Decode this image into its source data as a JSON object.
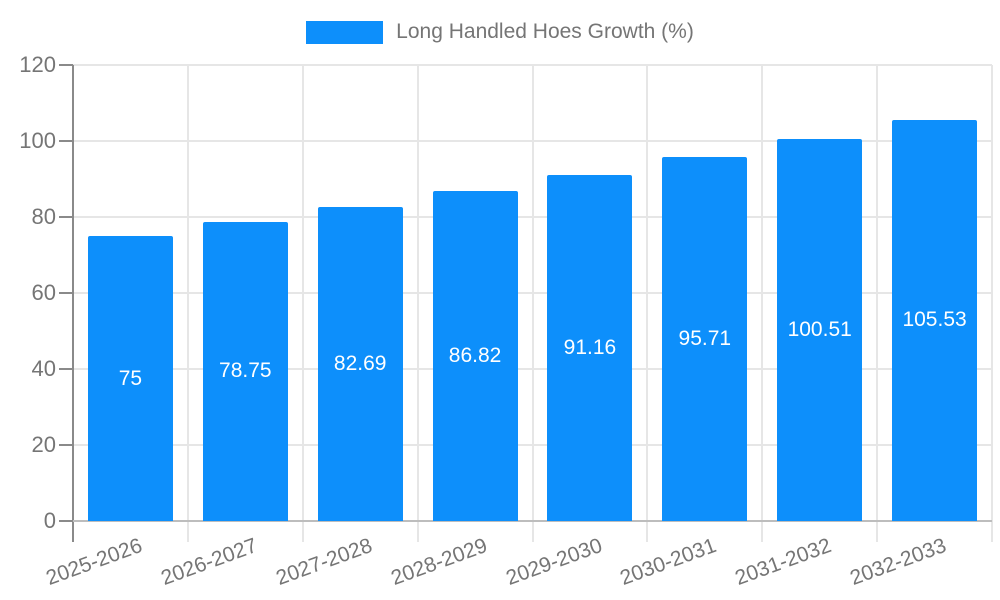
{
  "chart_data": {
    "type": "bar",
    "title": "",
    "legend": {
      "label": "Long Handled Hoes Growth (%)",
      "position": "top"
    },
    "categories": [
      "2025-2026",
      "2026-2027",
      "2027-2028",
      "2028-2029",
      "2029-2030",
      "2030-2031",
      "2031-2032",
      "2032-2033"
    ],
    "values": [
      75,
      78.75,
      82.69,
      86.82,
      91.16,
      95.71,
      100.51,
      105.53
    ],
    "value_labels": [
      "75",
      "78.75",
      "82.69",
      "86.82",
      "91.16",
      "95.71",
      "100.51",
      "105.53"
    ],
    "xlabel": "",
    "ylabel": "",
    "ylim": [
      0,
      120
    ],
    "yticks": [
      0,
      20,
      40,
      60,
      80,
      100,
      120
    ],
    "grid": true,
    "colors": {
      "bar": "#0d8ffb",
      "grid": "#e6e6e6",
      "y_axis": "#8a8a8a",
      "x_axis": "#bdbdbd",
      "tick_label": "#757575",
      "value_text": "#ffffff",
      "legend_text": "#757575"
    }
  }
}
